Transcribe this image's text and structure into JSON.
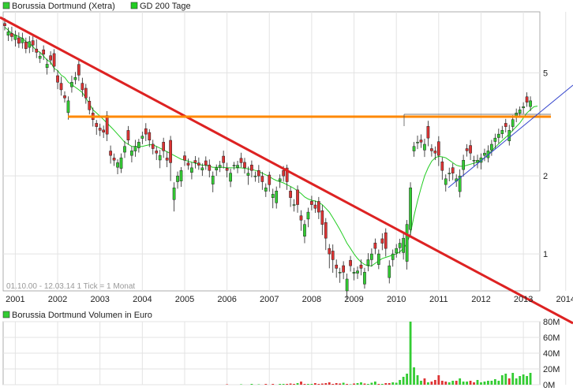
{
  "colors": {
    "up": "#33cc33",
    "down": "#dd3333",
    "ma": "#22cc22",
    "volume": "#33cc33",
    "volume_down": "#dd3333",
    "resistance": "#ff8800",
    "downtrend": "#dd2222",
    "uptrend": "#3344cc"
  },
  "legend": {
    "price_name": "Borussia Dortmund (Xetra)",
    "ma_name": "GD 200 Tage",
    "volume_name": "Borussia Dortmund Volumen in Euro"
  },
  "info_text": "01.10.00 - 12.03.14   1 Tick = 1 Monat",
  "chart_data": [
    {
      "type": "candlestick",
      "y_scale": "log",
      "ylim": [
        0.72,
        8.6
      ],
      "y_ticks": [
        1,
        2,
        5
      ],
      "y_tick_labels": [
        "1",
        "2",
        "5"
      ],
      "x_labels": [
        "2001",
        "2002",
        "2003",
        "2004",
        "2005",
        "2006",
        "2007",
        "2008",
        "2009",
        "2010",
        "2011",
        "2012",
        "2013",
        "2014"
      ],
      "grid": true,
      "legend_position": "top-left",
      "series": [
        {
          "name": "Borussia Dortmund (Xetra)",
          "closes": [
            7.6,
            7.2,
            6.9,
            7.0,
            6.5,
            6.8,
            6.2,
            6.6,
            6.4,
            6.0,
            5.8,
            5.9,
            5.4,
            5.6,
            5.3,
            4.6,
            4.3,
            4.0,
            3.9,
            4.6,
            4.8,
            4.9,
            4.3,
            4.0,
            3.6,
            3.3,
            3.1,
            3.0,
            2.95,
            2.9,
            2.4,
            2.3,
            2.25,
            2.35,
            2.6,
            2.75,
            2.5,
            2.6,
            2.7,
            2.85,
            2.9,
            2.75,
            2.55,
            2.45,
            2.4,
            2.5,
            2.3,
            2.25,
            1.8,
            2.0,
            2.1,
            2.3,
            2.2,
            2.15,
            2.25,
            2.2,
            2.15,
            2.2,
            2.1,
            2.0,
            2.15,
            2.2,
            2.25,
            2.1,
            2.05,
            2.2,
            2.2,
            2.25,
            2.15,
            2.05,
            2.1,
            2.0,
            2.0,
            1.9,
            1.8,
            1.85,
            1.7,
            1.75,
            1.95,
            2.0,
            1.9,
            1.65,
            1.55,
            1.55,
            1.35,
            1.3,
            1.45,
            1.55,
            1.5,
            1.45,
            1.3,
            1.15,
            1.0,
            0.95,
            0.88,
            0.85,
            0.85,
            0.8,
            0.9,
            0.85,
            0.86,
            0.88,
            0.85,
            0.95,
            1.0,
            1.05,
            1.0,
            1.1,
            1.05,
            0.9,
            1.0,
            1.05,
            1.1,
            1.15,
            1.3,
            1.8,
            2.6,
            2.7,
            2.7,
            2.65,
            2.8,
            2.5,
            2.45,
            2.4,
            2.1,
            1.95,
            2.05,
            2.05,
            1.95,
            2.0,
            2.3,
            2.5,
            2.45,
            2.3,
            2.3,
            2.35,
            2.45,
            2.5,
            2.65,
            2.8,
            2.9,
            3.0,
            3.1,
            3.0,
            3.3,
            3.5,
            3.6,
            3.7,
            3.85,
            3.9,
            3.7,
            3.9
          ],
          "open_offset_pct": [
            2,
            -3,
            3,
            -4,
            5,
            -4,
            6,
            -5,
            4,
            3,
            -2,
            4,
            -3,
            4,
            12,
            6,
            6,
            2,
            -10,
            -4,
            -2,
            10,
            6,
            9,
            8,
            6,
            3,
            2,
            2,
            18,
            4,
            2,
            -4,
            -9,
            -5,
            9,
            -4,
            -4,
            -5,
            -2,
            5,
            7,
            4,
            2,
            -4,
            8,
            2,
            22,
            -10,
            -5,
            -9,
            4,
            2,
            -4,
            2,
            2,
            -2,
            4,
            5,
            -7,
            -2,
            -2,
            6,
            2,
            -7,
            0,
            -2,
            4,
            5,
            -2,
            5,
            0,
            5,
            5,
            -3,
            9,
            -3,
            -10,
            -2,
            5,
            13,
            6,
            0,
            14,
            4,
            -10,
            -6,
            3,
            3,
            10,
            13,
            15,
            5,
            8,
            3,
            0,
            6,
            -10,
            5,
            -1,
            -2,
            3,
            -10,
            -5,
            -5,
            5,
            -9,
            4,
            15,
            -10,
            -5,
            -4,
            -4,
            -12,
            -28,
            -31,
            -4,
            0,
            2,
            -5,
            11,
            2,
            2,
            13,
            8,
            -5,
            0,
            5,
            -2,
            -13,
            -8,
            2,
            7,
            0,
            -2,
            -4,
            -2,
            -6,
            -5,
            -3,
            -3,
            -3,
            3,
            -9,
            -6,
            -3,
            -3,
            -1,
            5,
            -5
          ],
          "wick_up_pct": [
            5,
            4,
            6,
            4,
            5,
            5,
            4,
            5,
            4,
            9,
            4,
            4,
            5,
            4,
            4,
            5,
            6,
            4,
            4,
            6,
            5,
            4,
            5,
            4,
            4,
            5,
            3,
            4,
            4,
            4,
            5,
            4,
            3,
            4,
            5,
            4,
            4,
            6,
            3,
            4,
            5,
            3,
            4,
            4,
            5,
            4,
            6,
            4,
            5,
            4,
            3,
            4,
            4,
            5,
            4,
            5,
            4,
            4,
            5,
            4,
            3,
            4,
            5,
            5,
            4,
            3,
            4,
            5,
            4,
            6,
            4,
            4,
            5,
            4,
            4,
            3,
            5,
            4,
            4,
            4,
            3,
            4,
            5,
            4,
            5,
            4,
            4,
            5,
            4,
            4,
            5,
            4,
            4,
            6,
            5,
            4,
            4,
            5,
            4,
            4,
            4,
            5,
            4,
            6,
            5,
            4,
            4,
            5,
            4,
            5,
            4,
            4,
            4,
            4,
            4,
            5,
            4,
            6,
            5,
            5,
            5,
            4,
            4,
            5,
            4,
            4,
            5,
            4,
            4,
            6,
            5,
            4,
            5,
            4,
            5,
            4,
            4,
            5,
            4,
            4,
            5,
            4,
            4,
            5,
            4,
            4,
            3,
            4,
            4,
            4,
            3,
            4,
            4
          ],
          "wick_down_pct": [
            4,
            5,
            4,
            6,
            4,
            5,
            4,
            5,
            6,
            5,
            4,
            5,
            6,
            4,
            5,
            6,
            5,
            4,
            6,
            5,
            4,
            5,
            6,
            5,
            4,
            6,
            7,
            5,
            5,
            6,
            7,
            5,
            6,
            4,
            5,
            4,
            6,
            5,
            4,
            5,
            6,
            6,
            5,
            6,
            7,
            6,
            6,
            15,
            10,
            6,
            5,
            5,
            4,
            6,
            5,
            4,
            5,
            4,
            6,
            7,
            5,
            4,
            5,
            6,
            5,
            4,
            5,
            4,
            5,
            8,
            6,
            5,
            6,
            7,
            5,
            6,
            9,
            5,
            6,
            5,
            7,
            8,
            6,
            7,
            9,
            6,
            7,
            5,
            4,
            6,
            9,
            10,
            12,
            11,
            8,
            9,
            6,
            7,
            5,
            6,
            5,
            6,
            4,
            5,
            6,
            5,
            4,
            6,
            7,
            5,
            6,
            4,
            5,
            6,
            7,
            6,
            5,
            6,
            5,
            6,
            7,
            5,
            6,
            9,
            8,
            6,
            7,
            6,
            5,
            5,
            6,
            5,
            6,
            5,
            5,
            6,
            5,
            4,
            5,
            6,
            5,
            4,
            5,
            4,
            4,
            5,
            4,
            5,
            4,
            4,
            4,
            4,
            4
          ]
        },
        {
          "name": "GD 200 Tage",
          "values": [
            7.5,
            7.3,
            7.1,
            7.0,
            6.9,
            6.8,
            6.6,
            6.5,
            6.3,
            6.1,
            6.0,
            5.8,
            5.6,
            5.5,
            5.2,
            5.1,
            4.9,
            4.8,
            4.6,
            4.5,
            4.4,
            4.3,
            4.2,
            4.0,
            3.8,
            3.6,
            3.5,
            3.4,
            3.3,
            3.2,
            3.1,
            3.0,
            2.9,
            2.8,
            2.7,
            2.65,
            2.6,
            2.6,
            2.6,
            2.6,
            2.62,
            2.64,
            2.64,
            2.6,
            2.56,
            2.52,
            2.48,
            2.44,
            2.4,
            2.36,
            2.32,
            2.3,
            2.28,
            2.26,
            2.24,
            2.22,
            2.2,
            2.2,
            2.18,
            2.16,
            2.16,
            2.16,
            2.16,
            2.15,
            2.15,
            2.15,
            2.15,
            2.15,
            2.14,
            2.13,
            2.12,
            2.1,
            2.08,
            2.05,
            2.02,
            1.99,
            1.95,
            1.92,
            1.9,
            1.88,
            1.85,
            1.82,
            1.79,
            1.75,
            1.71,
            1.66,
            1.63,
            1.61,
            1.6,
            1.58,
            1.55,
            1.5,
            1.45,
            1.38,
            1.31,
            1.24,
            1.17,
            1.1,
            1.05,
            1.0,
            0.96,
            0.93,
            0.91,
            0.9,
            0.9,
            0.92,
            0.94,
            0.96,
            0.97,
            0.98,
            0.99,
            1.0,
            1.02,
            1.05,
            1.1,
            1.2,
            1.4,
            1.6,
            1.8,
            2.0,
            2.15,
            2.28,
            2.35,
            2.38,
            2.37,
            2.35,
            2.3,
            2.25,
            2.2,
            2.18,
            2.18,
            2.2,
            2.22,
            2.24,
            2.26,
            2.3,
            2.35,
            2.42,
            2.5,
            2.58,
            2.66,
            2.74,
            2.82,
            2.9,
            3.0,
            3.1,
            3.2,
            3.35,
            3.5,
            3.6,
            3.7,
            3.72
          ]
        }
      ]
    },
    {
      "type": "bar",
      "title": "Borussia Dortmund Volumen in Euro",
      "y_scale": "linear",
      "ylim": [
        0,
        80
      ],
      "y_tick_labels": [
        "0M",
        "20M",
        "40M",
        "60M",
        "80M"
      ],
      "unit": "M EUR",
      "values": [
        0,
        0,
        0,
        0,
        0,
        0,
        0,
        0,
        0,
        0,
        0,
        0,
        0,
        0,
        0,
        0,
        0,
        0,
        0,
        0,
        0,
        0,
        0,
        0,
        0,
        0,
        0,
        0,
        0,
        0,
        0,
        0,
        0,
        0,
        0,
        0,
        0,
        0,
        0,
        0,
        0,
        0,
        0,
        0,
        0,
        0,
        0,
        0,
        0,
        0,
        0,
        0,
        0,
        0,
        0,
        0,
        0,
        0,
        0,
        0,
        0,
        0,
        0,
        0.5,
        0,
        0,
        0,
        0.5,
        0,
        0,
        1,
        0,
        0.5,
        0,
        1,
        0,
        1,
        0,
        1,
        1,
        1,
        1.5,
        1,
        2,
        4,
        1,
        1,
        1,
        2,
        1,
        1.5,
        2,
        3,
        1,
        2,
        1.5,
        2.5,
        1,
        0.5,
        1.5,
        2,
        3,
        1.5,
        1,
        2.5,
        4,
        1,
        1,
        2,
        2,
        3,
        2.5,
        6,
        10,
        14,
        80,
        22,
        12,
        5,
        8,
        3,
        4,
        6,
        12,
        5,
        4,
        3,
        5,
        5,
        8,
        4,
        4,
        5,
        3,
        6,
        3,
        4,
        5,
        5,
        7,
        5,
        12,
        14,
        8,
        15,
        8,
        11,
        13,
        11,
        15
      ]
    }
  ]
}
